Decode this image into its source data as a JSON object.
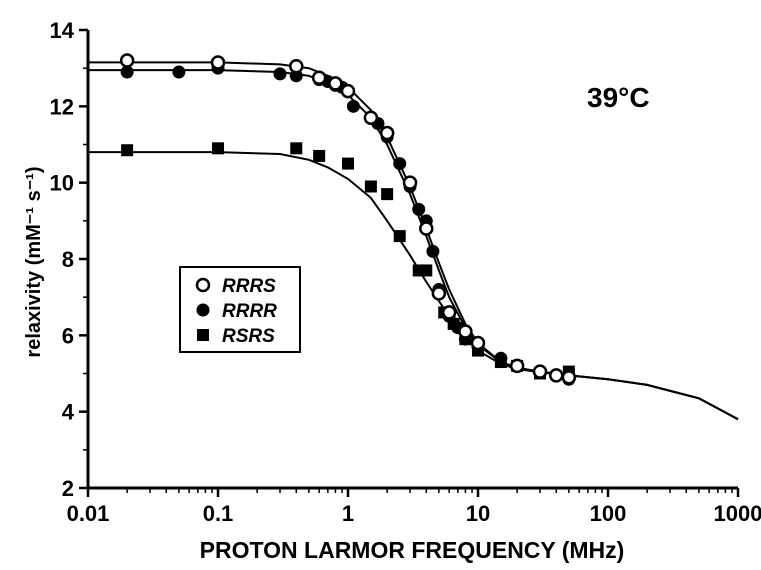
{
  "chart_data": {
    "type": "scatter",
    "title": "",
    "xlabel": "PROTON LARMOR FREQUENCY (MHz)",
    "ylabel": "relaxivity (mM⁻¹ s⁻¹)",
    "x_scale": "log",
    "xlim": [
      0.01,
      1000
    ],
    "ylim": [
      2,
      14
    ],
    "x_ticks": [
      0.01,
      0.1,
      1,
      10,
      100,
      1000
    ],
    "x_tick_labels": [
      "0.01",
      "0.1",
      "1",
      "10",
      "100",
      "1000"
    ],
    "y_ticks": [
      2,
      4,
      6,
      8,
      10,
      12,
      14
    ],
    "y_tick_labels": [
      "2",
      "4",
      "6",
      "8",
      "10",
      "12",
      "14"
    ],
    "grid": false,
    "legend_position": "center-left",
    "annotation": "39°C",
    "series": [
      {
        "name": "RRRS",
        "marker": "open-circle",
        "x": [
          0.02,
          0.1,
          0.4,
          0.6,
          0.8,
          1.0,
          1.5,
          2.0,
          3.0,
          4.0,
          5.0,
          6.0,
          8.0,
          10,
          20,
          30,
          40,
          50
        ],
        "y": [
          13.2,
          13.15,
          13.05,
          12.75,
          12.6,
          12.4,
          11.7,
          11.3,
          10.0,
          8.8,
          7.1,
          6.6,
          6.1,
          5.8,
          5.2,
          5.05,
          4.95,
          4.9
        ]
      },
      {
        "name": "RRRR",
        "marker": "filled-circle",
        "x": [
          0.02,
          0.05,
          0.1,
          0.3,
          0.4,
          0.6,
          0.7,
          0.8,
          0.9,
          1.0,
          1.1,
          1.5,
          1.7,
          2.0,
          2.5,
          3.0,
          3.5,
          4.0,
          4.5,
          5.0,
          6.0,
          7.0,
          8.0,
          10,
          15,
          20,
          30,
          40,
          50
        ],
        "y": [
          12.9,
          12.9,
          13.0,
          12.85,
          12.8,
          12.7,
          12.65,
          12.55,
          12.5,
          12.4,
          12.0,
          11.7,
          11.55,
          11.2,
          10.5,
          9.9,
          9.3,
          9.0,
          8.2,
          7.2,
          6.5,
          6.2,
          5.9,
          5.7,
          5.4,
          5.2,
          5.05,
          4.95,
          4.85
        ]
      },
      {
        "name": "RSRS",
        "marker": "filled-square",
        "x": [
          0.02,
          0.1,
          0.4,
          0.6,
          1.0,
          1.5,
          2.0,
          2.5,
          3.5,
          4.0,
          5.5,
          6.5,
          8.0,
          10,
          15,
          20,
          30,
          50
        ],
        "y": [
          10.85,
          10.9,
          10.9,
          10.7,
          10.5,
          9.9,
          9.7,
          8.6,
          7.7,
          7.7,
          6.6,
          6.3,
          5.9,
          5.6,
          5.3,
          5.2,
          5.0,
          5.05
        ]
      }
    ],
    "fit_curves": [
      {
        "name": "RRRS fit",
        "x": [
          0.01,
          0.1,
          0.3,
          0.5,
          0.7,
          1.0,
          1.5,
          2.0,
          3.0,
          4.0,
          5.0,
          6.0,
          8.0,
          10,
          15,
          20,
          30,
          50,
          100,
          200,
          500,
          1000
        ],
        "y": [
          13.15,
          13.15,
          13.1,
          13.0,
          12.8,
          12.5,
          11.9,
          11.2,
          9.9,
          8.8,
          7.9,
          7.2,
          6.3,
          5.8,
          5.3,
          5.15,
          5.05,
          4.95,
          4.85,
          4.7,
          4.35,
          3.8
        ]
      },
      {
        "name": "RRRR fit",
        "x": [
          0.01,
          0.1,
          0.3,
          0.5,
          0.7,
          1.0,
          1.5,
          2.0,
          3.0,
          4.0,
          5.0,
          6.0,
          8.0,
          10,
          15,
          20,
          30,
          50,
          100,
          200,
          500,
          1000
        ],
        "y": [
          12.95,
          12.95,
          12.9,
          12.8,
          12.6,
          12.3,
          11.7,
          11.0,
          9.7,
          8.6,
          7.7,
          7.0,
          6.2,
          5.75,
          5.3,
          5.15,
          5.05,
          4.95,
          4.85,
          4.7,
          4.35,
          3.8
        ]
      },
      {
        "name": "RSRS fit",
        "x": [
          0.01,
          0.1,
          0.3,
          0.5,
          0.7,
          1.0,
          1.5,
          2.0,
          3.0,
          4.0,
          5.0,
          6.0,
          8.0,
          10,
          15,
          20,
          30,
          50,
          100,
          200,
          500,
          1000
        ],
        "y": [
          10.8,
          10.8,
          10.75,
          10.6,
          10.4,
          10.1,
          9.6,
          9.0,
          8.1,
          7.4,
          6.9,
          6.5,
          5.95,
          5.6,
          5.25,
          5.12,
          5.03,
          4.95,
          4.85,
          4.7,
          4.35,
          3.8
        ]
      }
    ]
  }
}
